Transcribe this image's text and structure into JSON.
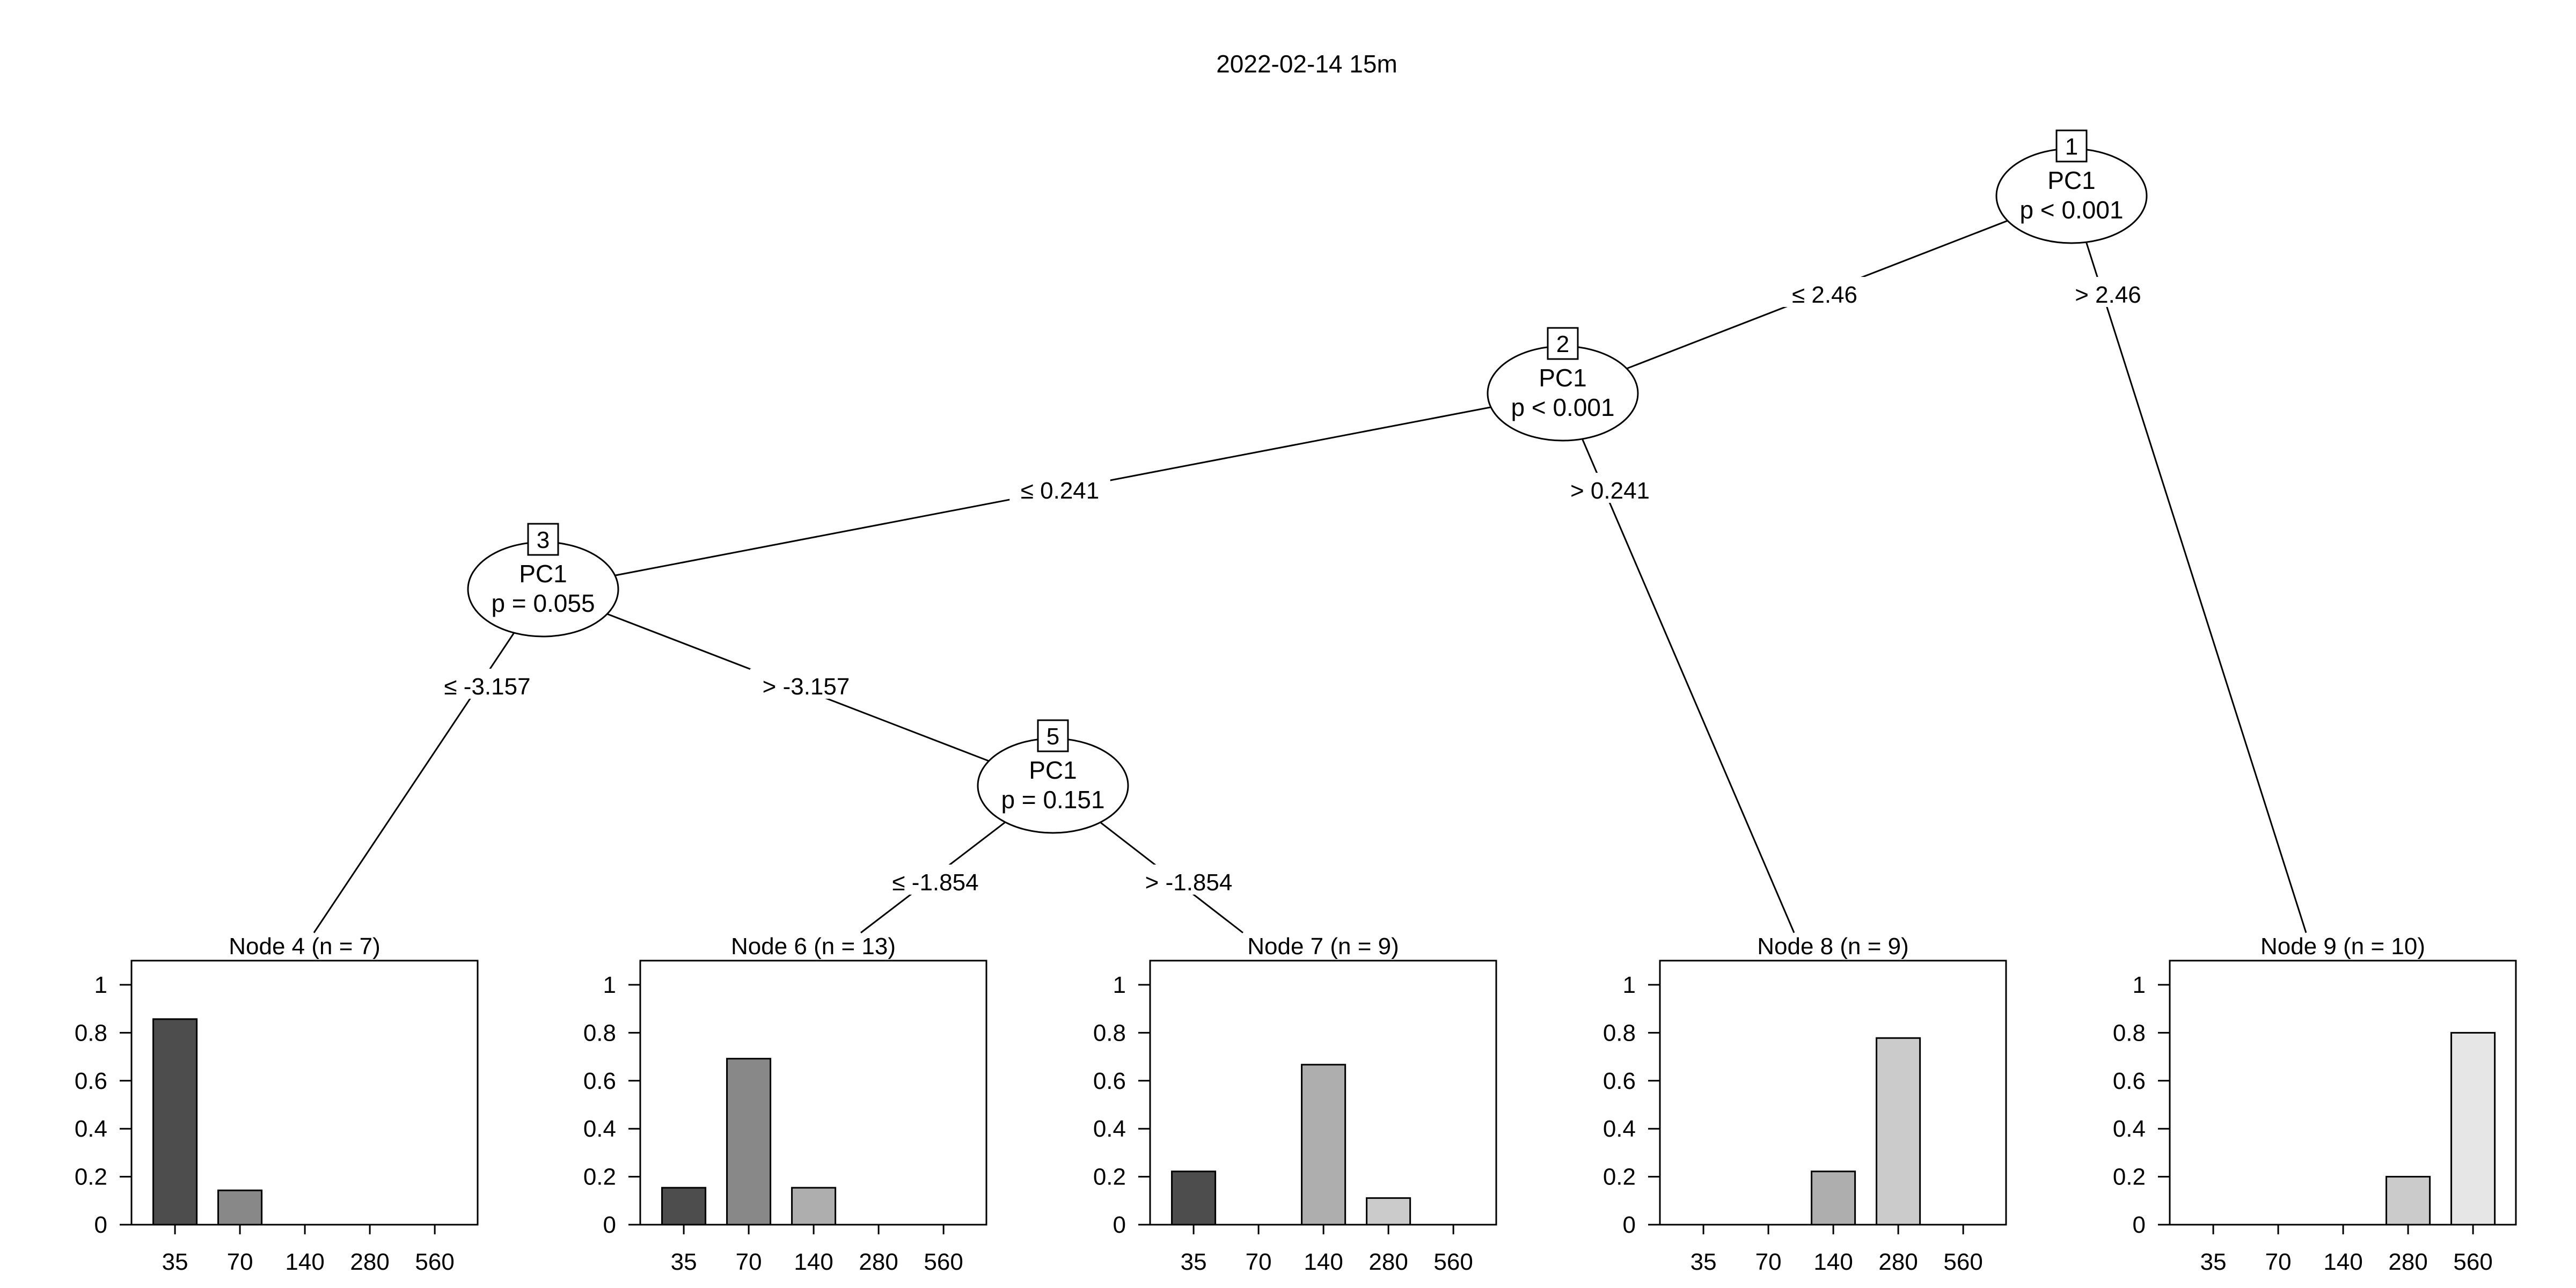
{
  "title": "2022-02-14 15m",
  "inner_nodes": [
    {
      "id": "1",
      "variable": "PC1",
      "p_text": "p < 0.001"
    },
    {
      "id": "2",
      "variable": "PC1",
      "p_text": "p < 0.001"
    },
    {
      "id": "3",
      "variable": "PC1",
      "p_text": "p = 0.055"
    },
    {
      "id": "5",
      "variable": "PC1",
      "p_text": "p = 0.151"
    }
  ],
  "edges": [
    {
      "from": "1",
      "to": "2",
      "label": "≤ 2.46"
    },
    {
      "from": "1",
      "to": "9",
      "label": "> 2.46"
    },
    {
      "from": "2",
      "to": "3",
      "label": "≤ 0.241"
    },
    {
      "from": "2",
      "to": "8",
      "label": "> 0.241"
    },
    {
      "from": "3",
      "to": "4",
      "label": "≤ -3.157"
    },
    {
      "from": "3",
      "to": "5",
      "label": "> -3.157"
    },
    {
      "from": "5",
      "to": "6",
      "label": "≤ -1.854"
    },
    {
      "from": "5",
      "to": "7",
      "label": "> -1.854"
    }
  ],
  "colors": [
    "#4d4d4d",
    "#888888",
    "#aeaeae",
    "#cbcbcb",
    "#e6e6e6"
  ],
  "chart_data": [
    {
      "type": "bar",
      "title": "Node 4 (n = 7)",
      "categories": [
        "35",
        "70",
        "140",
        "280",
        "560"
      ],
      "values": [
        0.857,
        0.143,
        0,
        0,
        0
      ],
      "ylim": [
        0,
        1
      ],
      "yticks": [
        "0",
        "0.2",
        "0.4",
        "0.6",
        "0.8",
        "1"
      ]
    },
    {
      "type": "bar",
      "title": "Node 6 (n = 13)",
      "categories": [
        "35",
        "70",
        "140",
        "280",
        "560"
      ],
      "values": [
        0.154,
        0.692,
        0.154,
        0,
        0
      ],
      "ylim": [
        0,
        1
      ],
      "yticks": [
        "0",
        "0.2",
        "0.4",
        "0.6",
        "0.8",
        "1"
      ]
    },
    {
      "type": "bar",
      "title": "Node 7 (n = 9)",
      "categories": [
        "35",
        "70",
        "140",
        "280",
        "560"
      ],
      "values": [
        0.222,
        0,
        0.667,
        0.111,
        0
      ],
      "ylim": [
        0,
        1
      ],
      "yticks": [
        "0",
        "0.2",
        "0.4",
        "0.6",
        "0.8",
        "1"
      ]
    },
    {
      "type": "bar",
      "title": "Node 8 (n = 9)",
      "categories": [
        "35",
        "70",
        "140",
        "280",
        "560"
      ],
      "values": [
        0,
        0,
        0.222,
        0.778,
        0
      ],
      "ylim": [
        0,
        1
      ],
      "yticks": [
        "0",
        "0.2",
        "0.4",
        "0.6",
        "0.8",
        "1"
      ]
    },
    {
      "type": "bar",
      "title": "Node 9 (n = 10)",
      "categories": [
        "35",
        "70",
        "140",
        "280",
        "560"
      ],
      "values": [
        0,
        0,
        0,
        0.2,
        0.8
      ],
      "ylim": [
        0,
        1
      ],
      "yticks": [
        "0",
        "0.2",
        "0.4",
        "0.6",
        "0.8",
        "1"
      ]
    }
  ]
}
